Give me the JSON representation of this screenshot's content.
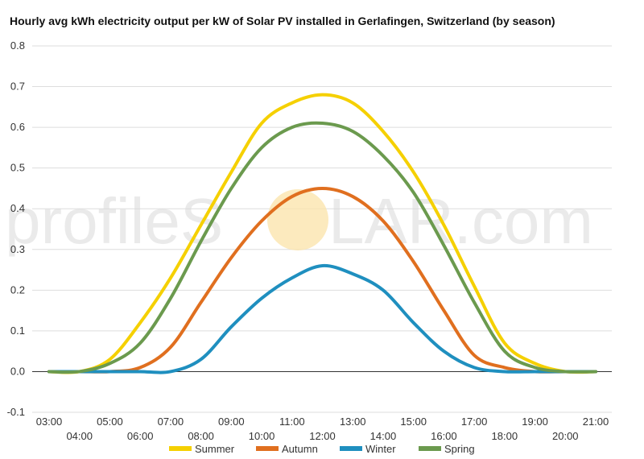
{
  "chart_data": {
    "type": "line",
    "title": "Hourly avg kWh electricity output per kW of Solar PV installed in Gerlafingen, Switzerland (by season)",
    "watermark": {
      "left": "profileS",
      "right": "LAR.com",
      "sun_color": "#fbe3a8"
    },
    "x_labels": [
      "03:00",
      "04:00",
      "05:00",
      "06:00",
      "07:00",
      "08:00",
      "09:00",
      "10:00",
      "11:00",
      "12:00",
      "13:00",
      "14:00",
      "15:00",
      "16:00",
      "17:00",
      "18:00",
      "19:00",
      "20:00",
      "21:00"
    ],
    "ylim": [
      -0.1,
      0.8
    ],
    "yticks": [
      "-0.1",
      "0.0",
      "0.1",
      "0.2",
      "0.3",
      "0.4",
      "0.5",
      "0.6",
      "0.7",
      "0.8"
    ],
    "grid": true,
    "legend_position": "bottom",
    "series": [
      {
        "name": "Summer",
        "color": "#f5d000",
        "values": [
          0.0,
          0.0,
          0.03,
          0.12,
          0.23,
          0.36,
          0.49,
          0.61,
          0.66,
          0.68,
          0.66,
          0.59,
          0.49,
          0.36,
          0.21,
          0.07,
          0.02,
          0.0,
          0.0
        ]
      },
      {
        "name": "Autumn",
        "color": "#e06f1f",
        "values": [
          0.0,
          0.0,
          0.0,
          0.01,
          0.06,
          0.17,
          0.28,
          0.37,
          0.43,
          0.45,
          0.43,
          0.37,
          0.27,
          0.15,
          0.04,
          0.01,
          0.0,
          0.0,
          0.0
        ]
      },
      {
        "name": "Winter",
        "color": "#1f8fbf",
        "values": [
          0.0,
          0.0,
          0.0,
          0.0,
          0.0,
          0.03,
          0.11,
          0.18,
          0.23,
          0.26,
          0.24,
          0.2,
          0.12,
          0.05,
          0.01,
          0.0,
          0.0,
          0.0,
          0.0
        ]
      },
      {
        "name": "Spring",
        "color": "#6b9a4e",
        "values": [
          0.0,
          0.0,
          0.02,
          0.07,
          0.18,
          0.32,
          0.45,
          0.55,
          0.6,
          0.61,
          0.59,
          0.53,
          0.44,
          0.31,
          0.17,
          0.05,
          0.01,
          0.0,
          0.0
        ]
      }
    ]
  }
}
